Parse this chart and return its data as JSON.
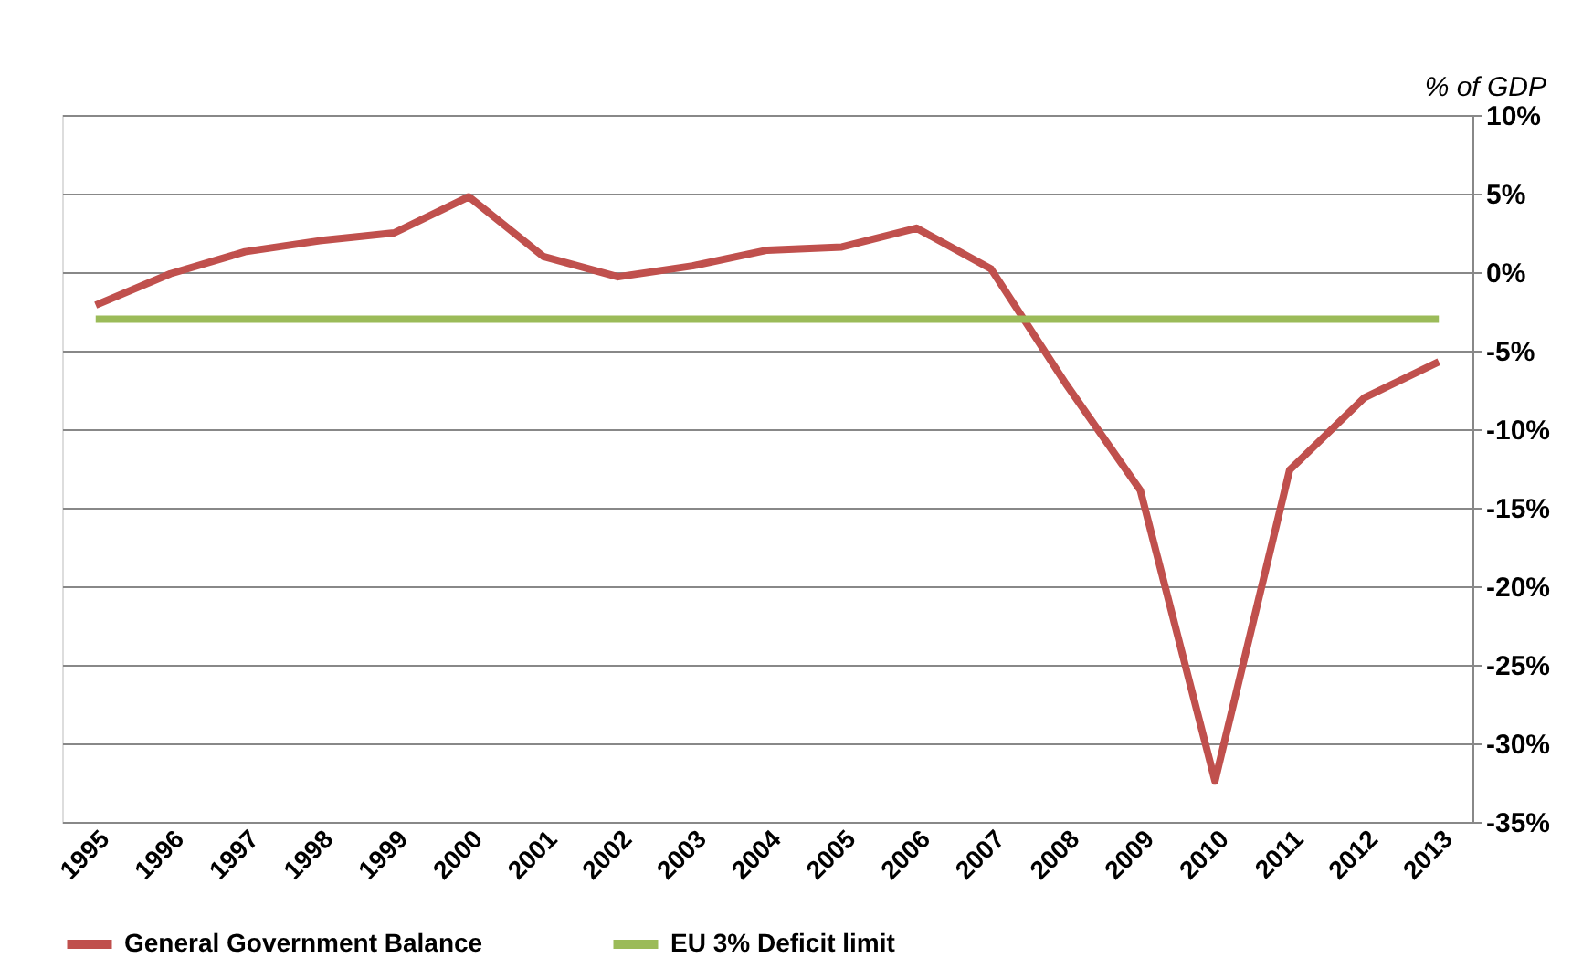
{
  "chart_data": {
    "type": "line",
    "ylabel": "% of GDP",
    "categories": [
      "1995",
      "1996",
      "1997",
      "1998",
      "1999",
      "2000",
      "2001",
      "2002",
      "2003",
      "2004",
      "2005",
      "2006",
      "2007",
      "2008",
      "2009",
      "2010",
      "2011",
      "2012",
      "2013"
    ],
    "series": [
      {
        "name": "General Government Balance",
        "color": "#c0504d",
        "values": [
          -2.1,
          -0.1,
          1.3,
          2.0,
          2.5,
          4.8,
          1.0,
          -0.3,
          0.4,
          1.4,
          1.6,
          2.8,
          0.2,
          -7.1,
          -13.9,
          -32.4,
          -12.6,
          -8.0,
          -5.7
        ]
      },
      {
        "name": "EU 3% Deficit limit",
        "color": "#9bbb59",
        "values": [
          -3,
          -3,
          -3,
          -3,
          -3,
          -3,
          -3,
          -3,
          -3,
          -3,
          -3,
          -3,
          -3,
          -3,
          -3,
          -3,
          -3,
          -3,
          -3
        ]
      }
    ],
    "ylim": [
      -35,
      10
    ],
    "yticks": [
      {
        "value": 10,
        "label": "10%"
      },
      {
        "value": 5,
        "label": "5%"
      },
      {
        "value": 0,
        "label": "0%"
      },
      {
        "value": -5,
        "label": "-5%"
      },
      {
        "value": -10,
        "label": "-10%"
      },
      {
        "value": -15,
        "label": "-15%"
      },
      {
        "value": -20,
        "label": "-20%"
      },
      {
        "value": -25,
        "label": "-25%"
      },
      {
        "value": -30,
        "label": "-30%"
      },
      {
        "value": -35,
        "label": "-35%"
      }
    ],
    "grid": "y",
    "legend": "bottom",
    "marker": "none",
    "line_style": "solid"
  }
}
